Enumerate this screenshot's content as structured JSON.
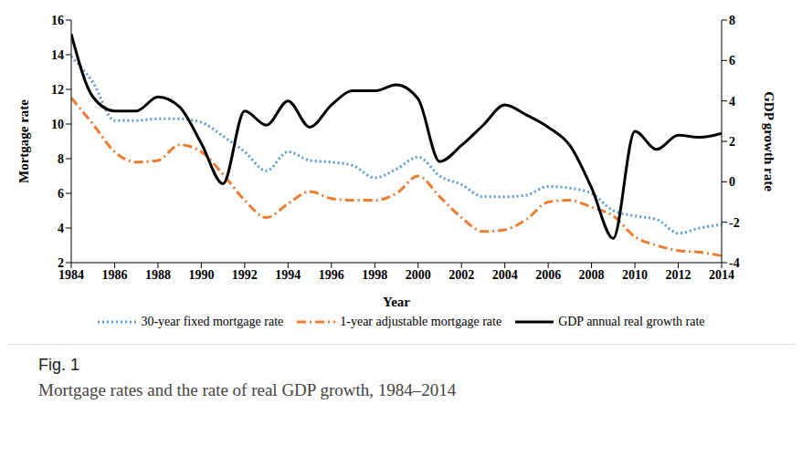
{
  "chart_data": {
    "type": "line",
    "x_label": "Year",
    "y_label": "Mortgage rate",
    "y2_label": "GDP growth rate",
    "caption_label": "Fig. 1",
    "caption": "Mortgage rates and the rate of real GDP growth, 1984–2014",
    "x": [
      1984,
      1985,
      1986,
      1987,
      1988,
      1989,
      1990,
      1991,
      1992,
      1993,
      1994,
      1995,
      1996,
      1997,
      1998,
      1999,
      2000,
      2001,
      2002,
      2003,
      2004,
      2005,
      2006,
      2007,
      2008,
      2009,
      2010,
      2011,
      2012,
      2013,
      2014
    ],
    "xlim": [
      1984,
      2014
    ],
    "xticks": [
      1984,
      1986,
      1988,
      1990,
      1992,
      1994,
      1996,
      1998,
      2000,
      2002,
      2004,
      2006,
      2008,
      2010,
      2012,
      2014
    ],
    "ylim": [
      2,
      16
    ],
    "yticks": [
      2,
      4,
      6,
      8,
      10,
      12,
      14,
      16
    ],
    "y2lim": [
      -4,
      8
    ],
    "y2ticks": [
      -4,
      -2,
      0,
      2,
      4,
      6,
      8
    ],
    "legend": "bottom",
    "series": [
      {
        "name": "30-year fixed mortgage rate",
        "color": "#5b9bd5",
        "line_style": "dotted",
        "values": [
          13.9,
          12.4,
          10.2,
          10.2,
          10.3,
          10.3,
          10.1,
          9.3,
          8.4,
          7.3,
          8.4,
          7.9,
          7.8,
          7.6,
          6.9,
          7.4,
          8.1,
          7.0,
          6.5,
          5.8,
          5.8,
          5.9,
          6.4,
          6.3,
          6.0,
          5.0,
          4.7,
          4.5,
          3.7,
          4.0,
          4.2
        ]
      },
      {
        "name": "1-year adjustable mortgage rate",
        "color": "#ed7d31",
        "line_style": "dashdot",
        "values": [
          11.5,
          10.0,
          8.4,
          7.8,
          7.9,
          8.8,
          8.4,
          7.1,
          5.6,
          4.6,
          5.4,
          6.1,
          5.7,
          5.6,
          5.6,
          6.0,
          7.0,
          5.8,
          4.6,
          3.8,
          3.9,
          4.5,
          5.5,
          5.6,
          5.2,
          4.7,
          3.5,
          3.0,
          2.7,
          2.6,
          2.4
        ]
      },
      {
        "name": "GDP annual real growth rate",
        "color": "#000000",
        "line_style": "solid",
        "axis": "y2",
        "values": [
          7.3,
          4.2,
          3.5,
          3.5,
          4.2,
          3.7,
          1.9,
          -0.1,
          3.5,
          2.8,
          4.0,
          2.7,
          3.8,
          4.5,
          4.5,
          4.8,
          4.1,
          1.0,
          1.8,
          2.8,
          3.8,
          3.3,
          2.7,
          1.8,
          -0.3,
          -2.8,
          2.5,
          1.6,
          2.3,
          2.2,
          2.4
        ]
      }
    ]
  }
}
